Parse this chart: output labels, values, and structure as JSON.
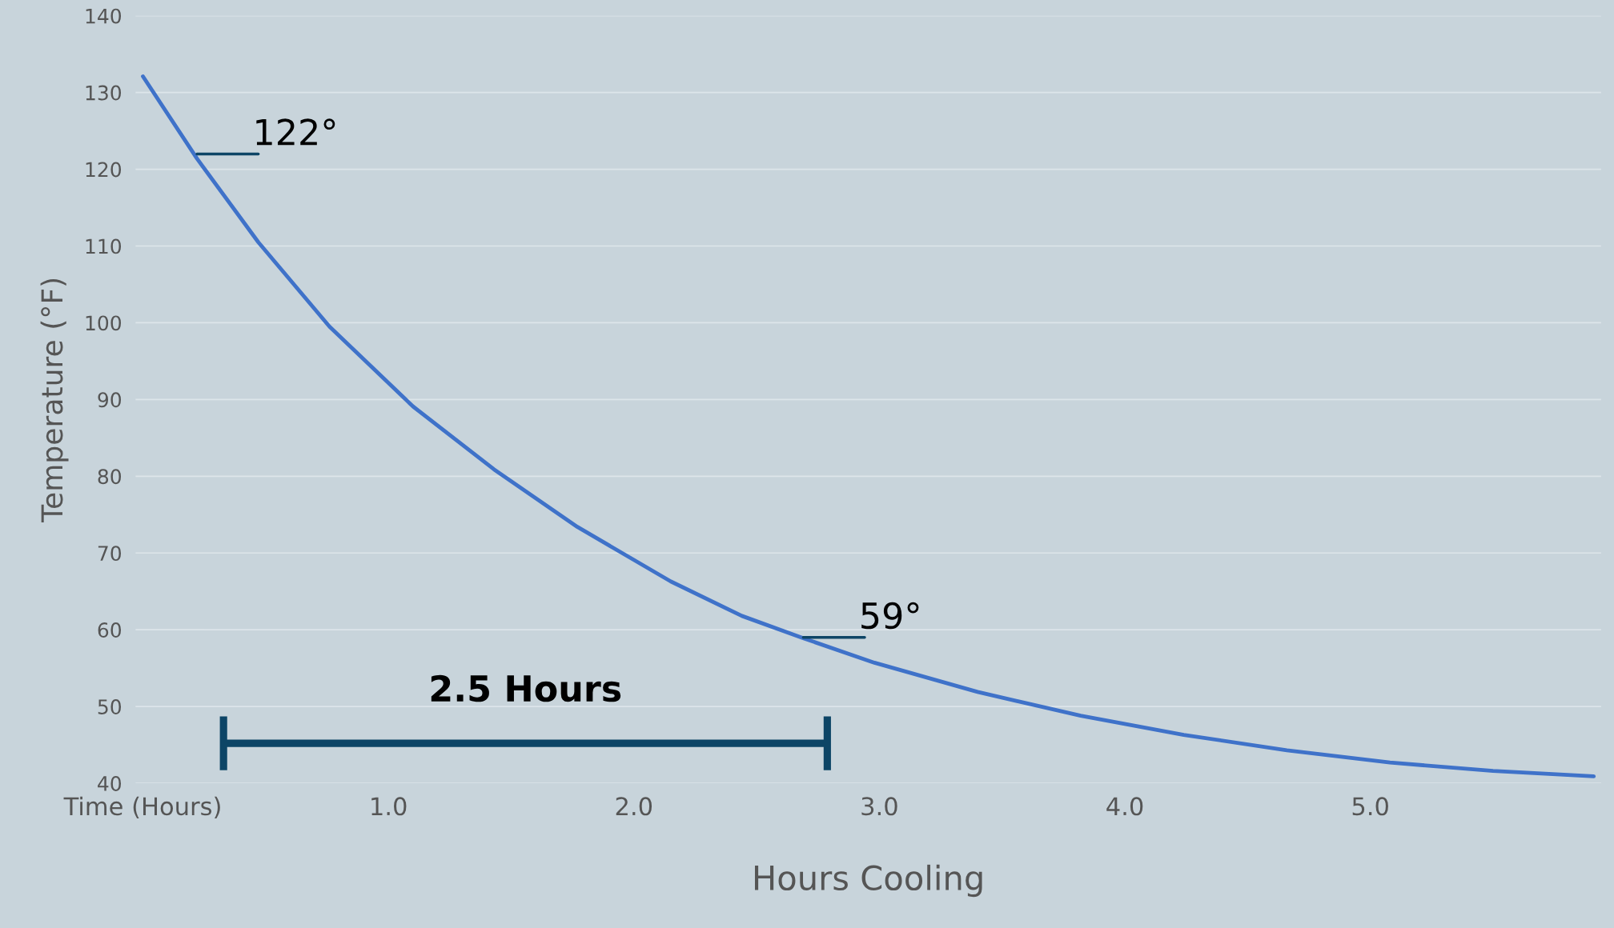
{
  "chart_data": {
    "type": "line",
    "xlabel": "Hours Cooling",
    "ylabel": "Temperature (°F)",
    "series": [
      {
        "color": "#3f72c9",
        "x": [
          0,
          0.22,
          0.47,
          0.76,
          1.1,
          1.43,
          1.77,
          2.15,
          2.44,
          2.69,
          2.98,
          3.4,
          3.82,
          4.24,
          4.66,
          5.08,
          5.5,
          5.91
        ],
        "values": [
          132.1,
          121.4,
          110.5,
          99.5,
          89.1,
          80.9,
          73.4,
          66.3,
          61.8,
          58.9,
          55.7,
          51.9,
          48.8,
          46.3,
          44.3,
          42.7,
          41.6,
          40.9
        ]
      }
    ],
    "xlim": [
      -0.03,
      5.94
    ],
    "ylim": [
      40,
      140
    ],
    "xticks": [
      {
        "value": 0,
        "label": "Time (Hours)"
      },
      {
        "value": 1,
        "label": "1.0"
      },
      {
        "value": 2,
        "label": "2.0"
      },
      {
        "value": 3,
        "label": "3.0"
      },
      {
        "value": 4,
        "label": "4.0"
      },
      {
        "value": 5,
        "label": "5.0"
      }
    ],
    "yticks": [
      40,
      50,
      60,
      70,
      80,
      90,
      100,
      110,
      120,
      130,
      140
    ],
    "grid": "y",
    "annotations": [
      {
        "text": "122°",
        "x": 0.22,
        "y": 122
      },
      {
        "text": "59°",
        "x": 2.69,
        "y": 59
      },
      "2.5 Hours"
    ]
  }
}
